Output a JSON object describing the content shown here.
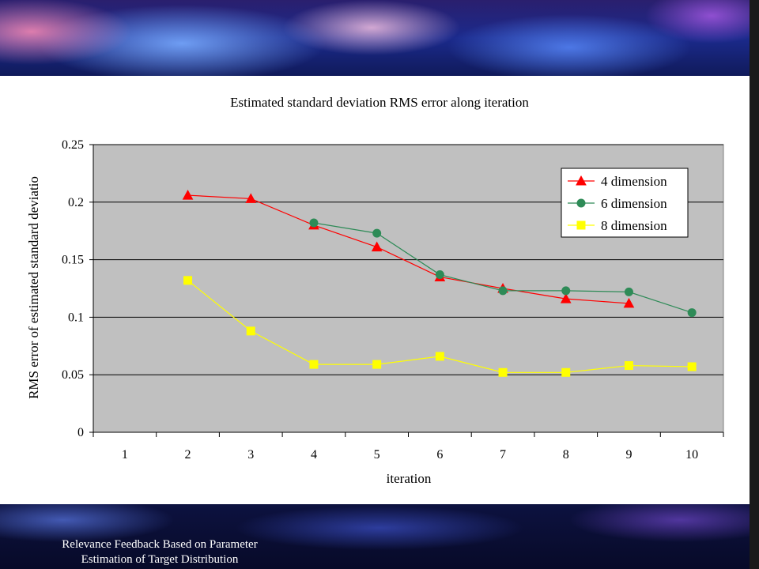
{
  "footer": {
    "line1": "Relevance Feedback Based on Parameter",
    "line2": "Estimation of Target Distribution"
  },
  "colors": {
    "plot_bg": "#c0c0c0",
    "grid": "#000000",
    "series_4": "#ff0000",
    "series_6": "#2e8b57",
    "series_8": "#ffff00"
  },
  "chart_data": {
    "type": "line",
    "title": "Estimated standard deviation RMS error along iteration",
    "xlabel": "iteration",
    "ylabel": "RMS error of estimated standard deviatio",
    "categories": [
      "1",
      "2",
      "3",
      "4",
      "5",
      "6",
      "7",
      "8",
      "9",
      "10"
    ],
    "ylim": [
      0,
      0.25
    ],
    "yticks": [
      "0",
      "0.05",
      "0.1",
      "0.15",
      "0.2",
      "0.25"
    ],
    "grid": true,
    "legend_position": "top-right",
    "series": [
      {
        "name": "4 dimension",
        "marker": "triangle",
        "color": "#ff0000",
        "values": [
          null,
          0.206,
          0.203,
          0.18,
          0.161,
          0.135,
          0.125,
          0.116,
          0.112,
          null
        ]
      },
      {
        "name": "6 dimension",
        "marker": "circle",
        "color": "#2e8b57",
        "values": [
          null,
          null,
          null,
          0.182,
          0.173,
          0.137,
          0.123,
          0.123,
          0.122,
          0.104
        ]
      },
      {
        "name": "8 dimension",
        "marker": "square",
        "color": "#ffff00",
        "values": [
          null,
          0.132,
          0.088,
          0.059,
          0.059,
          0.066,
          0.052,
          0.052,
          0.058,
          0.057
        ]
      }
    ]
  }
}
